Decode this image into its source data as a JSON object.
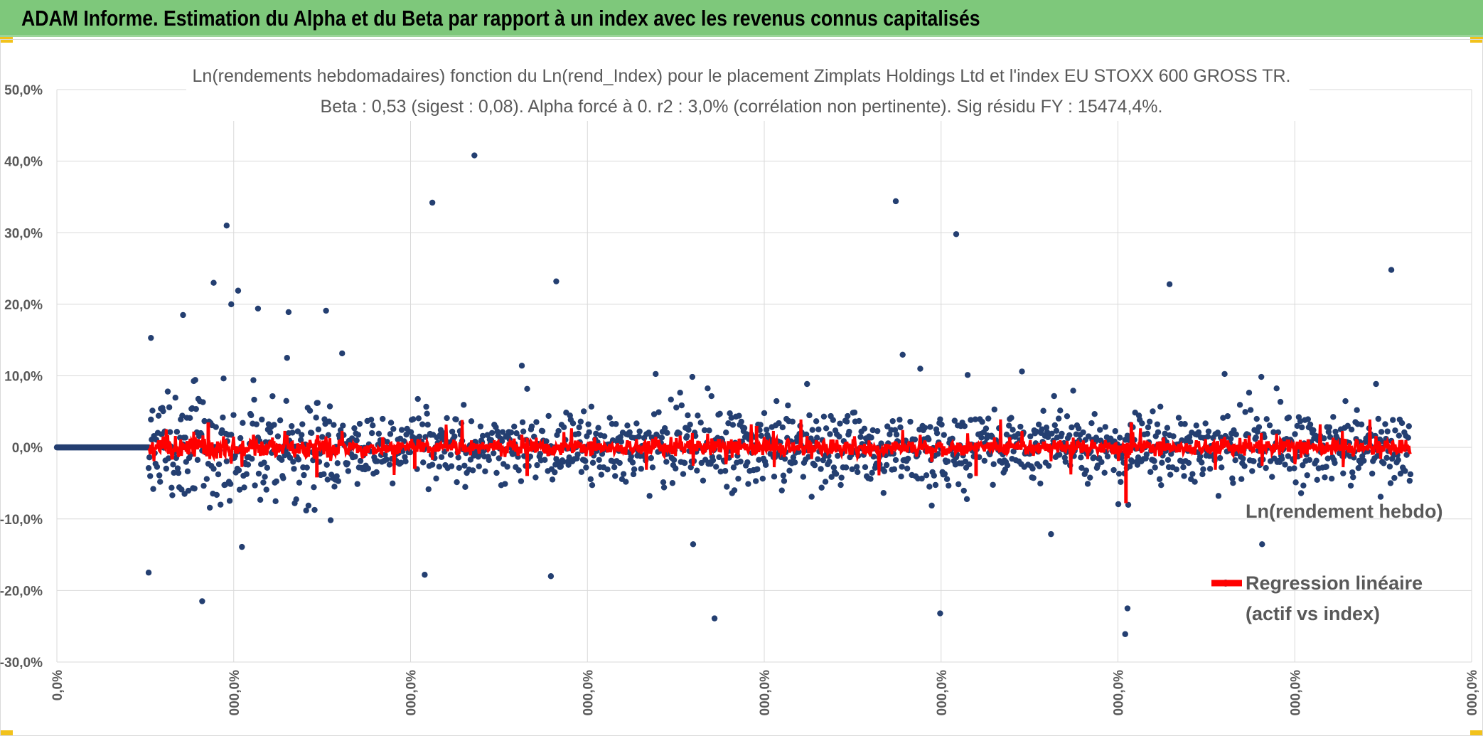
{
  "banner": {
    "title": "ADAM Informe. Estimation du Alpha et du Beta par rapport à un index avec les revenus connus capitalisés"
  },
  "chart_data": {
    "type": "scatter",
    "title": "Ln(rendements hebdomadaires) fonction du Ln(rend_Index) pour le placement Zimplats Holdings Ltd et l'index EU STOXX 600 GROSS TR.",
    "subtitle": "Beta : 0,53 (sigest : 0,08). Alpha forcé à 0. r2 : 3,0% (corrélation non pertinente). Sig résidu FY : 15474,4%.",
    "ylim": [
      -30,
      50
    ],
    "y_ticks": [
      "50,0%",
      "40,0%",
      "30,0%",
      "20,0%",
      "10,0%",
      "0,0%",
      "-10,0%",
      "-20,0%",
      "-30,0%"
    ],
    "x_ticks": [
      "0,0%",
      "000,0%",
      "000,0%",
      "000,0%",
      "000,0%",
      "000,0%",
      "000,0%",
      "000,0%",
      "000,0%"
    ],
    "grid": true,
    "legend_placement": "right",
    "series": [
      {
        "name": "Ln(rendement hebdo)",
        "color": "#243f71",
        "marker": "dot",
        "zero_run_end_index": 120,
        "notable_points": [
          [
            120,
            -17.5
          ],
          [
            123,
            15.3
          ],
          [
            165,
            18.5
          ],
          [
            190,
            -21.5
          ],
          [
            205,
            23.0
          ],
          [
            222,
            31.0
          ],
          [
            228,
            20.0
          ],
          [
            237,
            21.9
          ],
          [
            263,
            19.4
          ],
          [
            303,
            18.9
          ],
          [
            352,
            19.1
          ],
          [
            491,
            34.2
          ],
          [
            481,
            -17.8
          ],
          [
            546,
            40.8
          ],
          [
            653,
            23.2
          ],
          [
            646,
            -18.0
          ],
          [
            860,
            -23.9
          ],
          [
            1097,
            34.4
          ],
          [
            1176,
            29.8
          ],
          [
            1155,
            -23.2
          ],
          [
            1397,
            -26.1
          ],
          [
            1400,
            -22.5
          ],
          [
            1455,
            22.8
          ],
          [
            1745,
            24.8
          ]
        ]
      },
      {
        "name": "Regression linéaire",
        "name_line2": "(actif vs index)",
        "color": "#ff0000",
        "marker": "line"
      }
    ]
  }
}
